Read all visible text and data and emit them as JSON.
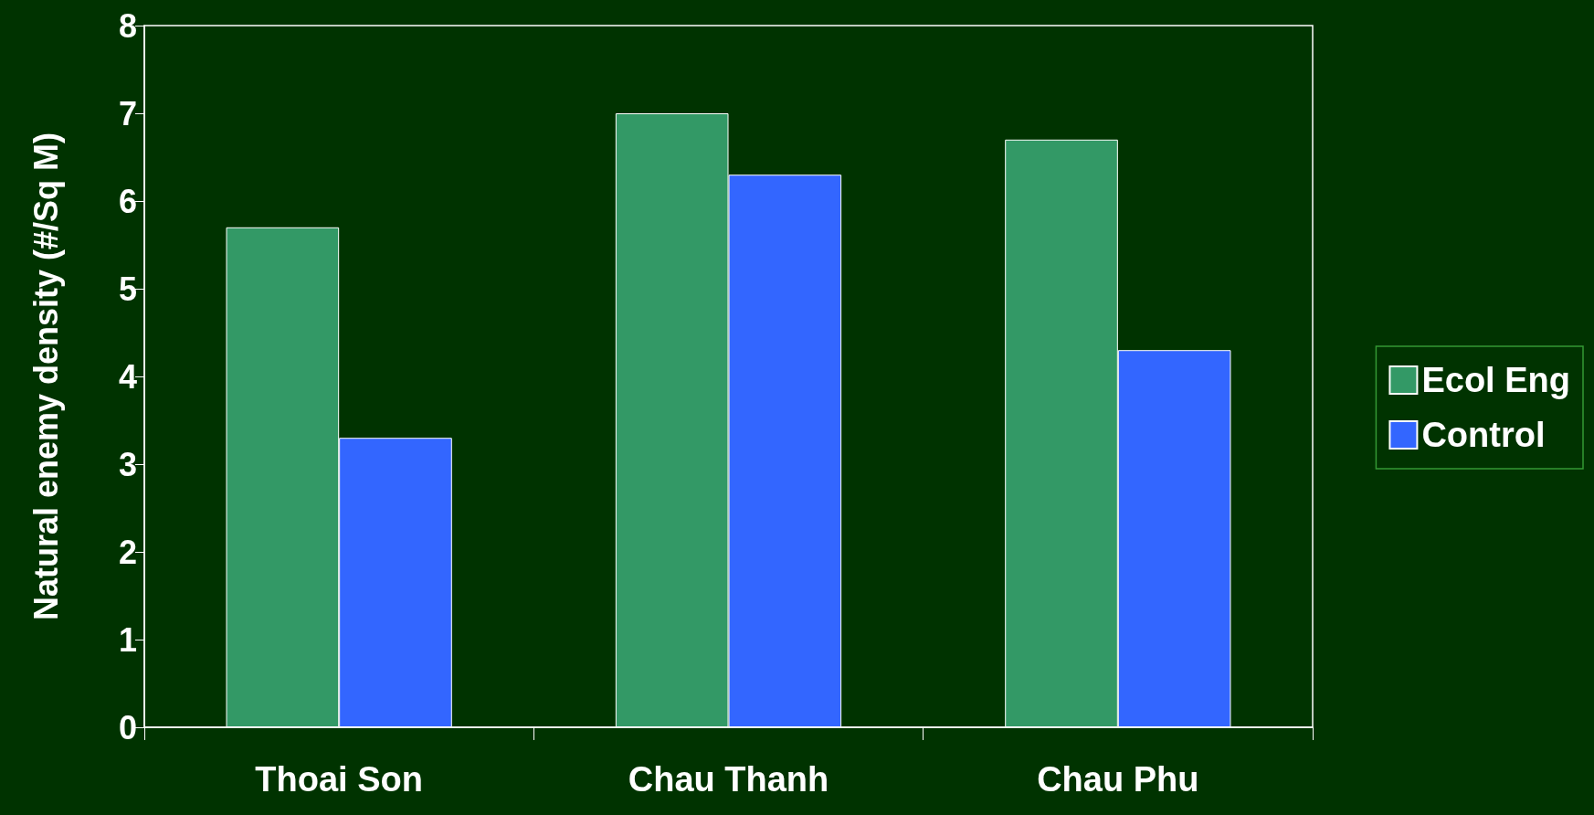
{
  "chart_data": {
    "type": "bar",
    "ylabel": "Natural enemy density (#/Sq M)",
    "categories": [
      "Thoai Son",
      "Chau Thanh",
      "Chau Phu"
    ],
    "series": [
      {
        "name": "Ecol Eng",
        "color": "#339966",
        "values": [
          5.7,
          7.0,
          6.7
        ]
      },
      {
        "name": "Control",
        "color": "#3366ff",
        "values": [
          3.3,
          6.3,
          4.3
        ]
      }
    ],
    "ylim": [
      0,
      8
    ],
    "yticks": [
      0,
      1,
      2,
      3,
      4,
      5,
      6,
      7,
      8
    ],
    "grid": false,
    "legend": "right"
  }
}
